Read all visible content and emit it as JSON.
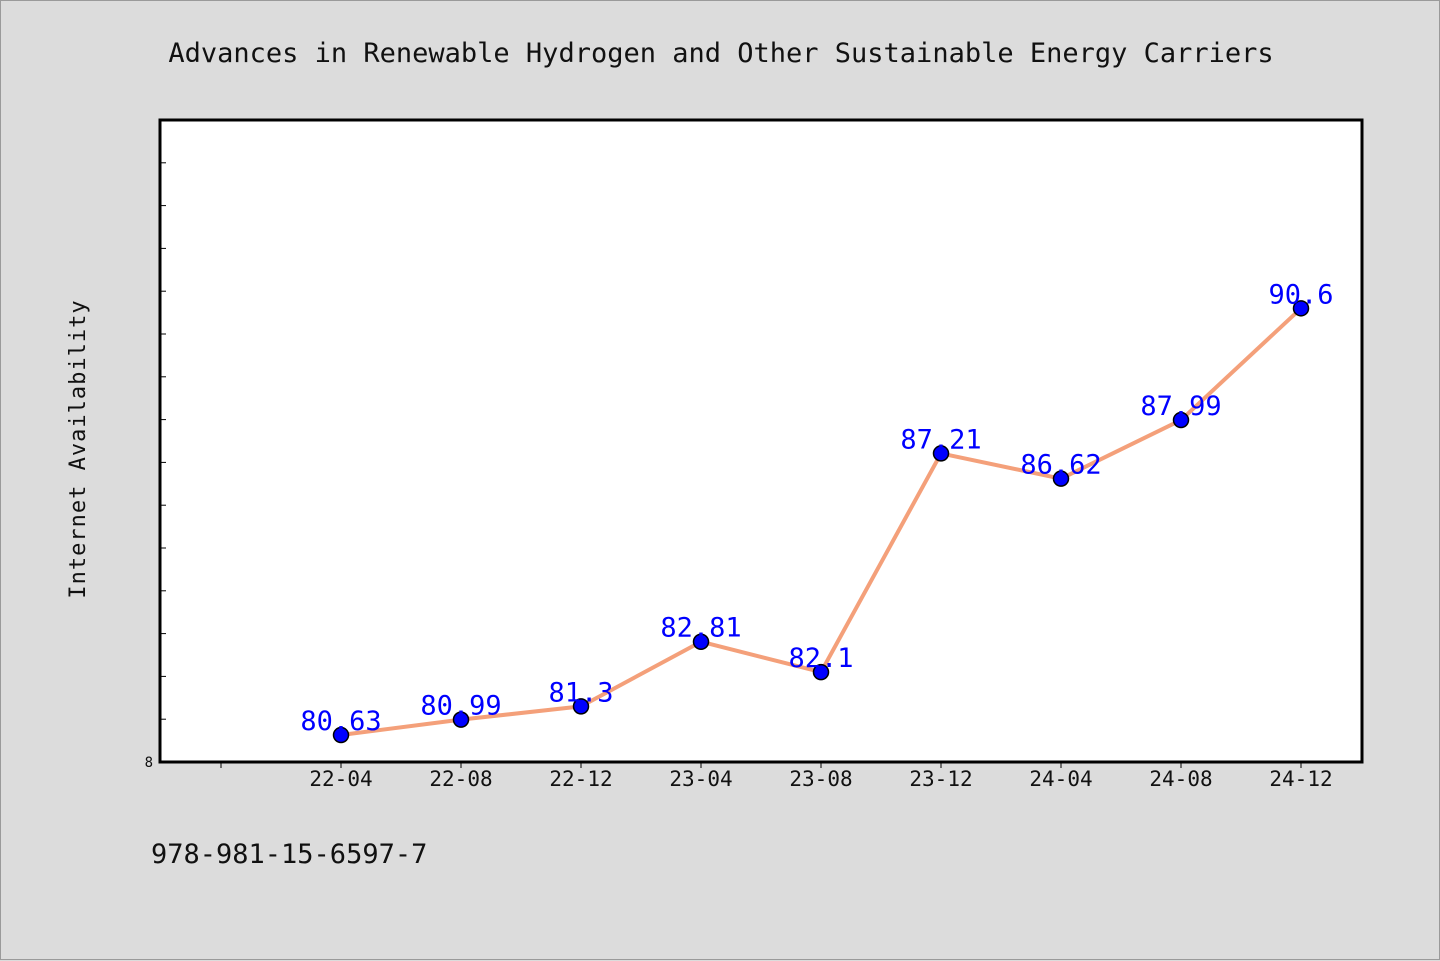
{
  "chart_data": {
    "type": "line",
    "title": "Advances in Renewable Hydrogen and Other Sustainable Energy Carriers",
    "ylabel": "Internet Availability",
    "xlabel": "",
    "categories": [
      "22-04",
      "22-08",
      "22-12",
      "23-04",
      "23-08",
      "23-12",
      "24-04",
      "24-08",
      "24-12"
    ],
    "series": [
      {
        "values": [
          80.63,
          80.99,
          81.3,
          82.81,
          82.1,
          87.21,
          86.62,
          87.99,
          90.6
        ]
      }
    ],
    "data_labels": [
      "80.63",
      "80.99",
      "81.3",
      "82.81",
      "82.1",
      "87.21",
      "86.62",
      "87.99",
      "90.6"
    ],
    "ylim": [
      80,
      95
    ],
    "y_tick_label": "8",
    "grid": false,
    "legend": "none",
    "colors": {
      "line": "#f4a07a",
      "marker": "#0000ff",
      "label": "#0000ff",
      "plot_bg": "#ffffff",
      "page_bg": "#dcdcdc"
    }
  },
  "footnote": "978-981-15-6597-7"
}
